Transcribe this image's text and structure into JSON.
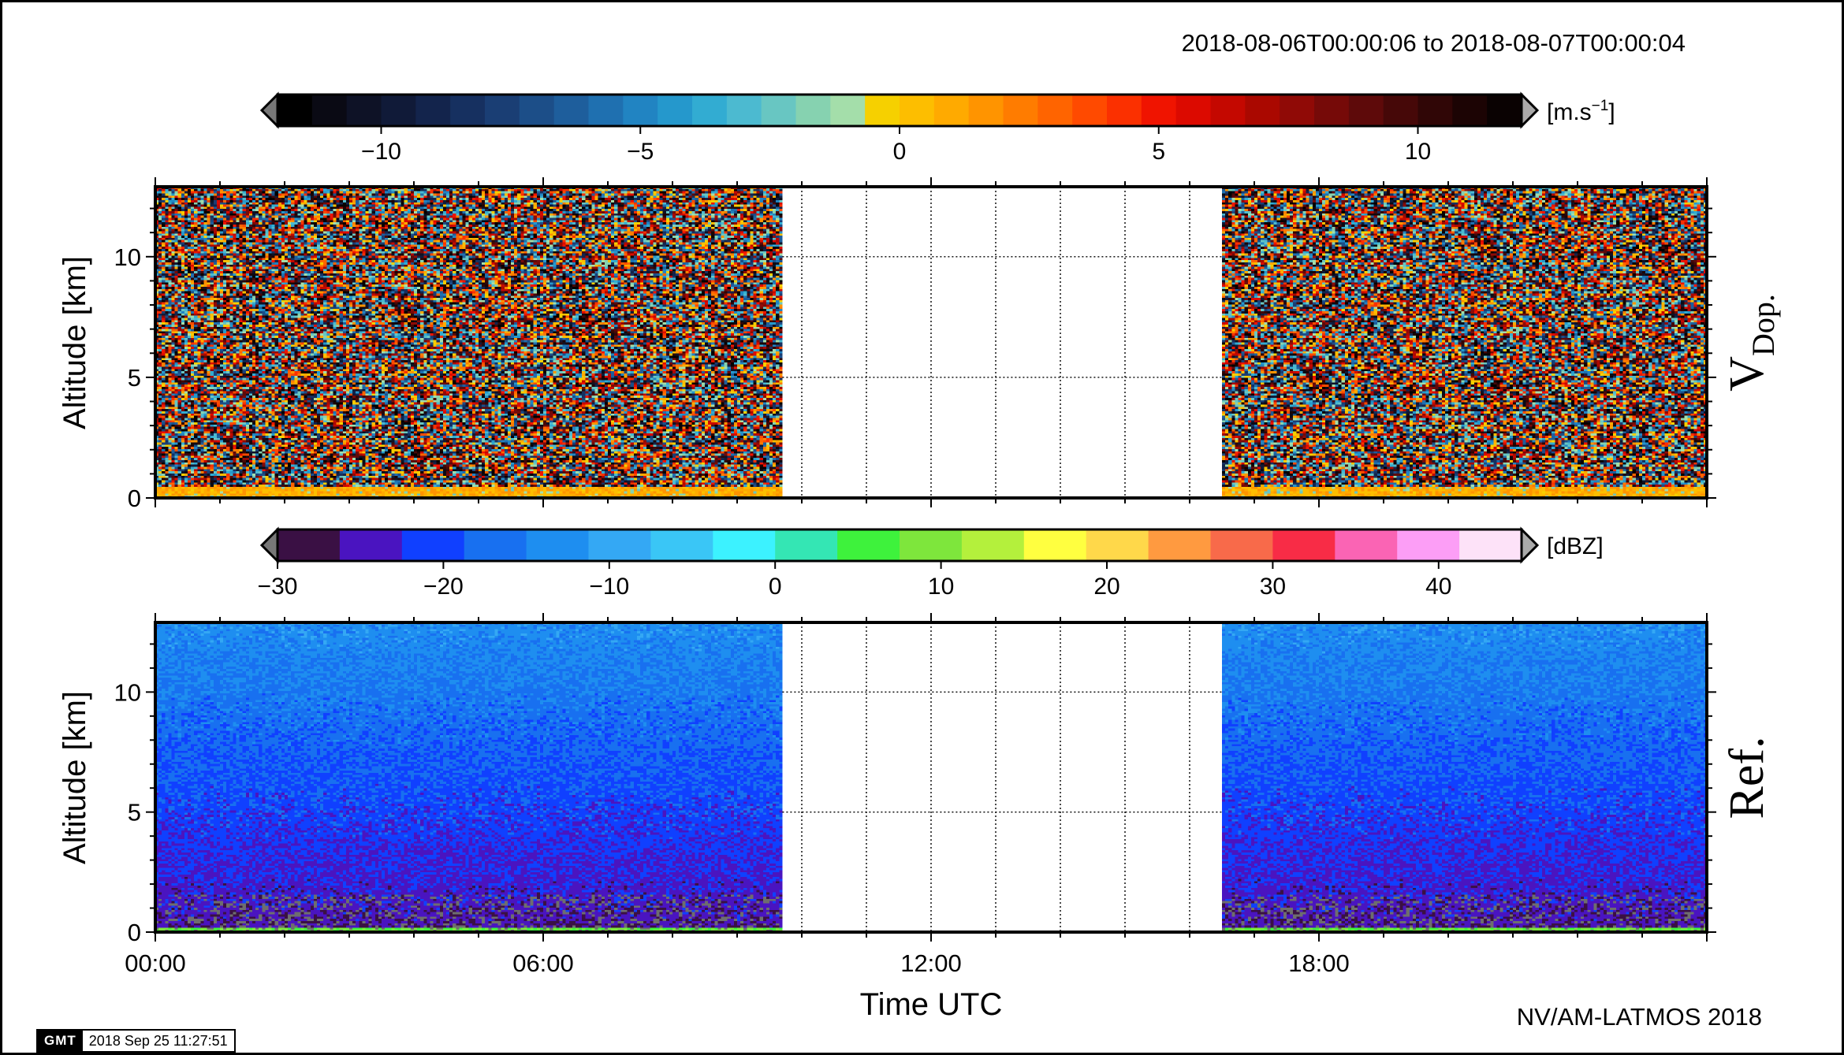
{
  "header": {
    "date_range": "2018-08-06T00:00:06 to 2018-08-07T00:00:04"
  },
  "footer": {
    "credit": "NV/AM-LATMOS 2018",
    "gmt_logo": "GMT",
    "gmt_timestamp": "2018 Sep 25 11:27:51"
  },
  "colors": {
    "doppler_scale": [
      "#000000",
      "#0a0a14",
      "#0e1226",
      "#101a38",
      "#13244c",
      "#163060",
      "#1a3e74",
      "#1c4e88",
      "#1e5e9c",
      "#1f70b0",
      "#2184c2",
      "#2598cc",
      "#32acd2",
      "#4cbad0",
      "#68c6c2",
      "#86d2b0",
      "#a4deaa",
      "#f6d000",
      "#fdbe00",
      "#ffaa00",
      "#ff9400",
      "#ff7c00",
      "#ff6400",
      "#ff4a00",
      "#fb3000",
      "#f01400",
      "#dc0a00",
      "#c40800",
      "#aa0800",
      "#900a06",
      "#760a08",
      "#5e0a0a",
      "#460808",
      "#300606",
      "#1c0404",
      "#0a0202"
    ],
    "reflectivity_scale": [
      "#3a1044",
      "#4a14c0",
      "#1040ff",
      "#1870f0",
      "#1e8ef0",
      "#34a8f4",
      "#3ac6f6",
      "#3cf2ff",
      "#34e6b4",
      "#3ef23c",
      "#7ee63c",
      "#b4f03c",
      "#ffff40",
      "#ffd84a",
      "#ff9a40",
      "#f86a4a",
      "#f82c46",
      "#fa64b4",
      "#fc9ef6",
      "#fde2f8"
    ],
    "frame": "#000000"
  },
  "chart_data": [
    {
      "name": "doppler_velocity",
      "type": "heatmap",
      "title": "",
      "xlabel": "",
      "ylabel": "Altitude [km]",
      "panel_label": "V_Dop.",
      "panel_label_main": "V",
      "panel_label_sub": "Dop.",
      "xlim": [
        0,
        24
      ],
      "ylim": [
        0,
        12.9
      ],
      "x_ticks": [
        0,
        6,
        12,
        18
      ],
      "y_ticks": [
        0,
        5,
        10
      ],
      "y_tick_labels": [
        "0",
        "5",
        "10"
      ],
      "grid": true,
      "data_gaps_hours": [
        [
          9.7,
          16.5
        ]
      ],
      "colorbar": {
        "range": [
          -12,
          12
        ],
        "ticks": [
          -10,
          -5,
          0,
          5,
          10
        ],
        "tick_labels": [
          "−10",
          "−5",
          "0",
          "5",
          "10"
        ],
        "unit_base": "[m.s",
        "unit_exp": "−1",
        "unit_close": "]"
      },
      "surface_layer": {
        "top_km": 0.5,
        "value_range": [
          0,
          2
        ]
      },
      "aloft_value_range": [
        -12,
        12
      ]
    },
    {
      "name": "reflectivity",
      "type": "heatmap",
      "title": "",
      "xlabel": "Time UTC",
      "ylabel": "Altitude [km]",
      "panel_label": "Ref.",
      "xlim": [
        0,
        24
      ],
      "ylim": [
        0,
        12.9
      ],
      "x_ticks": [
        0,
        6,
        12,
        18
      ],
      "x_tick_labels": [
        "00:00",
        "06:00",
        "12:00",
        "18:00"
      ],
      "y_ticks": [
        0,
        5,
        10
      ],
      "y_tick_labels": [
        "0",
        "5",
        "10"
      ],
      "grid": true,
      "data_gaps_hours": [
        [
          9.7,
          16.5
        ]
      ],
      "colorbar": {
        "range": [
          -30,
          45
        ],
        "ticks": [
          -30,
          -20,
          -10,
          0,
          10,
          20,
          30,
          40
        ],
        "tick_labels": [
          "−30",
          "−20",
          "−10",
          "0",
          "10",
          "20",
          "30",
          "40"
        ],
        "unit": "[dBZ]"
      },
      "profile_dbz": {
        "surface": -26,
        "low_level": -24,
        "mid_level": -20,
        "top": -13
      }
    }
  ]
}
